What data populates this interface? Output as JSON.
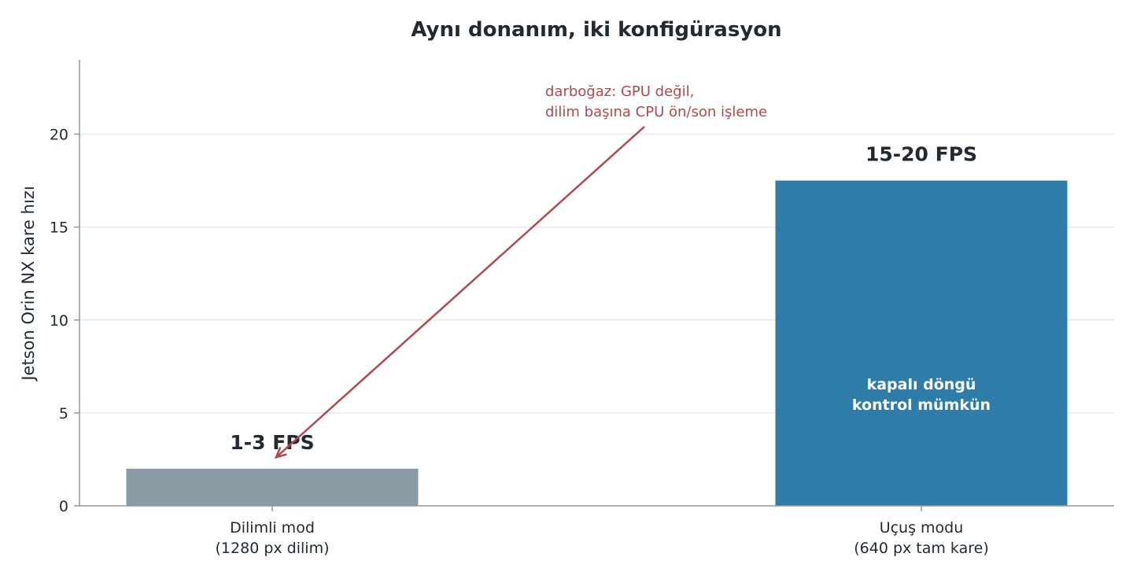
{
  "chart_data": {
    "type": "bar",
    "title": "Aynı donanım, iki konfigürasyon",
    "ylabel": "Jetson Orin NX kare hızı",
    "xlabel": "",
    "ylim": [
      0,
      24
    ],
    "yticks": [
      0,
      5,
      10,
      15,
      20
    ],
    "grid": "horizontal",
    "categories": [
      [
        "Dilimli mod",
        "(1280 px dilim)"
      ],
      [
        "Uçuş modu",
        "(640 px tam kare)"
      ]
    ],
    "values": [
      2,
      17.5
    ],
    "colors": [
      "#8a9ba5",
      "#2e7ca8"
    ],
    "bar_labels": [
      "1-3 FPS",
      "15-20 FPS"
    ],
    "inner_labels": [
      "",
      "kapalı döngü\nkontrol mümkün"
    ],
    "annotation": {
      "lines": [
        "darboğaz: GPU değil,",
        "dilim başına CPU ön/son işleme"
      ],
      "color": "#b5484b",
      "points_to": {
        "category_index": 0,
        "y": 3.5
      },
      "text_at": {
        "category_position": 1.2,
        "y": 20.4
      }
    }
  }
}
